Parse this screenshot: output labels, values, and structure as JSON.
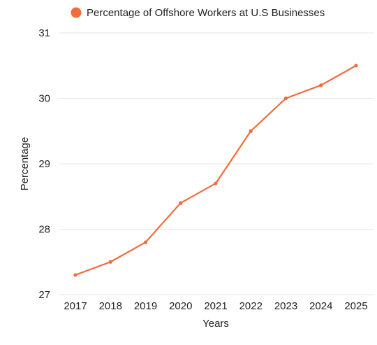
{
  "chart_data": {
    "type": "line",
    "title": "",
    "xlabel": "Years",
    "ylabel": "Percentage",
    "categories": [
      "2017",
      "2018",
      "2019",
      "2020",
      "2021",
      "2022",
      "2023",
      "2024",
      "2025"
    ],
    "series": [
      {
        "name": "Percentage of Offshore Workers at U.S Businesses",
        "color": "#f26b3a",
        "values": [
          27.3,
          27.5,
          27.8,
          28.4,
          28.7,
          29.5,
          30.0,
          30.2,
          30.5
        ]
      }
    ],
    "ylim": [
      27,
      31
    ],
    "yticks": [
      "27",
      "28",
      "29",
      "30",
      "31"
    ],
    "grid": true,
    "legend": "top-center"
  }
}
